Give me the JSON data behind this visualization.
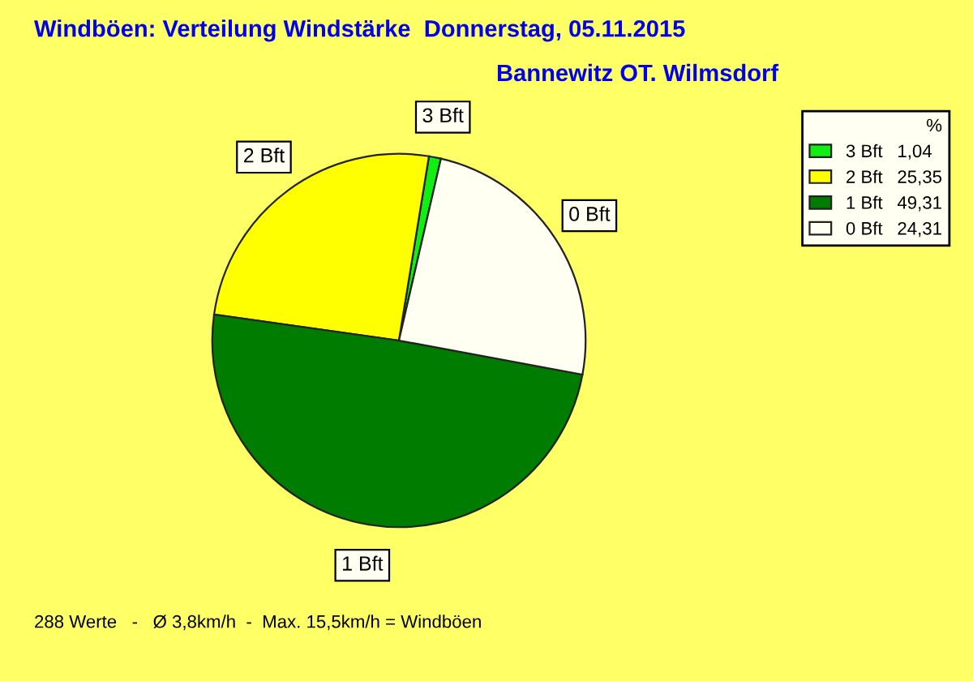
{
  "chart_data": {
    "type": "pie",
    "title": "Windböen: Verteilung Windstärke  Donnerstag, 05.11.2015",
    "subtitle": "Bannewitz OT. Wilmsdorf",
    "legend_title": "%",
    "categories": [
      "3 Bft",
      "2 Bft",
      "1 Bft",
      "0 Bft"
    ],
    "values": [
      1.04,
      25.35,
      49.31,
      24.31
    ],
    "value_labels": [
      "1,04",
      "25,35",
      "49,31",
      "24,31"
    ],
    "colors": [
      "#11ee11",
      "#ffff00",
      "#007c00",
      "#fffff2"
    ],
    "legend": "top right",
    "annotations": [
      "288 Werte   -   Ø 3,8km/h  -  Max. 15,5km/h = Windböen"
    ]
  }
}
